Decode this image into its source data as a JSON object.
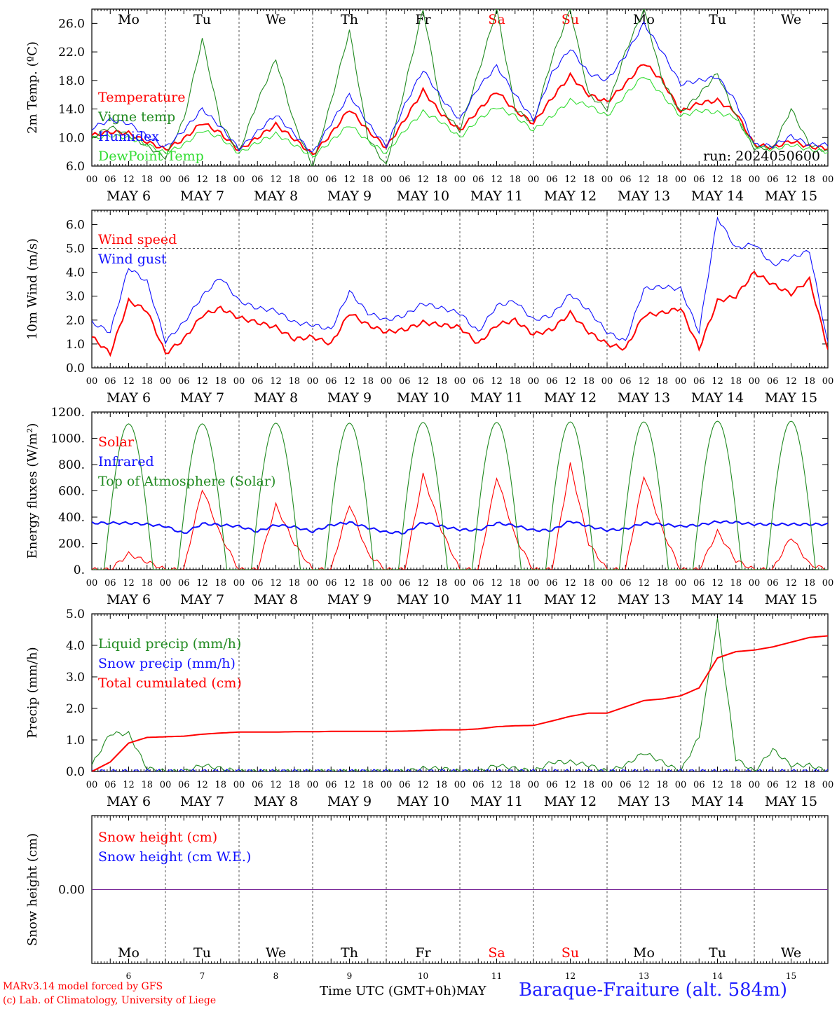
{
  "colors": {
    "red": "#ff0000",
    "green": "#228b22",
    "blue": "#1010ff",
    "lightgreen": "#33dd33",
    "purple": "#7a2a9a",
    "axis": "#000000",
    "grid": "#555555",
    "weekend": "#ff0000"
  },
  "days": [
    "Mo",
    "Tu",
    "We",
    "Th",
    "Fr",
    "Sa",
    "Su",
    "Mo",
    "Tu",
    "We"
  ],
  "weekend_days": [
    "Sa",
    "Su"
  ],
  "dates": [
    "MAY  6",
    "MAY  7",
    "MAY  8",
    "MAY  9",
    "MAY 10",
    "MAY 11",
    "MAY 12",
    "MAY 13",
    "MAY 14",
    "MAY 15"
  ],
  "day_numbers": [
    "6",
    "7",
    "8",
    "9",
    "10",
    "11",
    "12",
    "13",
    "14",
    "15"
  ],
  "hour_ticks": [
    "00",
    "06",
    "12",
    "18"
  ],
  "final_tick": "00",
  "footer": {
    "model": "MARv3.14 model forced by GFS",
    "credit": "(c) Lab. of Climatology, University of Liege",
    "time_label": "Time UTC (GMT+0h)",
    "month": "MAY",
    "station": "Baraque-Fraiture (alt. 584m)"
  },
  "chart_data": [
    {
      "type": "line",
      "ylabel": "2m Temp. (ºC)",
      "ylim": [
        6,
        28
      ],
      "yticks": [
        6,
        10,
        14,
        18,
        22,
        26
      ],
      "ytick_labels": [
        "6.0",
        "10.0",
        "14.0",
        "18.0",
        "22.0",
        "26.0"
      ],
      "x": [
        0,
        6,
        12,
        18,
        24,
        30,
        36,
        42,
        48,
        54,
        60,
        66,
        72,
        78,
        84,
        90,
        96,
        102,
        108,
        114,
        120,
        126,
        132,
        138,
        144,
        150,
        156,
        162,
        168,
        174,
        180,
        186,
        192,
        198,
        204,
        210,
        216,
        222,
        228,
        234,
        240
      ],
      "run_label": "run: 2024050600",
      "series": [
        {
          "name": "Temperature",
          "color": "red",
          "values": [
            10.3,
            10.8,
            10.6,
            9.4,
            8.3,
            9.8,
            12.1,
            10.6,
            8.2,
            10.0,
            11.8,
            9.8,
            7.6,
            10.5,
            14.0,
            11.0,
            8.6,
            12.5,
            16.6,
            13.3,
            11.0,
            13.8,
            16.5,
            13.8,
            12.0,
            15.5,
            18.7,
            16.0,
            15.0,
            17.5,
            20.5,
            18.0,
            13.6,
            14.8,
            15.2,
            13.5,
            9.0,
            8.6,
            9.5,
            8.7,
            8.5
          ]
        },
        {
          "name": "Vigne temp",
          "color": "green",
          "values": [
            10.0,
            11.5,
            10.3,
            8.8,
            7.2,
            12.5,
            23.8,
            12.0,
            8.0,
            15.0,
            21.0,
            12.0,
            6.0,
            15.0,
            25.0,
            10.0,
            6.0,
            17.0,
            28.0,
            14.0,
            11.0,
            19.0,
            28.0,
            14.0,
            12.0,
            21.0,
            28.0,
            16.0,
            14.0,
            22.0,
            28.0,
            18.0,
            13.5,
            16.0,
            19.0,
            13.0,
            8.5,
            8.5,
            14.0,
            9.0,
            8.0
          ]
        },
        {
          "name": "Humidex",
          "color": "blue",
          "values": [
            11.3,
            12.5,
            12.0,
            10.2,
            8.6,
            11.0,
            14.0,
            11.5,
            8.4,
            10.8,
            13.2,
            10.5,
            7.8,
            12.0,
            16.0,
            12.0,
            8.8,
            14.5,
            19.5,
            15.5,
            12.5,
            17.0,
            20.0,
            16.0,
            12.5,
            19.0,
            22.5,
            19.0,
            18.0,
            21.5,
            26.0,
            22.0,
            17.5,
            18.0,
            18.5,
            15.0,
            9.0,
            8.8,
            10.2,
            9.0,
            9.0
          ]
        },
        {
          "name": "DewPoint Temp",
          "color": "lightgreen",
          "values": [
            9.8,
            10.3,
            10.0,
            9.0,
            7.8,
            9.0,
            11.0,
            10.0,
            7.8,
            9.3,
            10.5,
            9.0,
            7.3,
            9.5,
            11.8,
            9.5,
            7.8,
            11.0,
            13.6,
            12.2,
            10.0,
            12.5,
            14.3,
            13.0,
            11.0,
            13.0,
            15.2,
            14.5,
            13.0,
            16.0,
            18.7,
            16.0,
            13.0,
            13.8,
            13.5,
            12.8,
            8.8,
            8.3,
            9.0,
            8.3,
            8.0
          ]
        }
      ]
    },
    {
      "type": "line",
      "ylabel": "10m Wind (m/s)",
      "ylim": [
        0,
        6.6
      ],
      "yticks": [
        0,
        1,
        2,
        3,
        4,
        5,
        6
      ],
      "ytick_labels": [
        "0.0",
        "1.0",
        "2.0",
        "3.0",
        "4.0",
        "5.0",
        "6.0"
      ],
      "hline": 5,
      "x": [
        0,
        6,
        12,
        18,
        24,
        30,
        36,
        42,
        48,
        54,
        60,
        66,
        72,
        78,
        84,
        90,
        96,
        102,
        108,
        114,
        120,
        126,
        132,
        138,
        144,
        150,
        156,
        162,
        168,
        174,
        180,
        186,
        192,
        198,
        204,
        210,
        216,
        222,
        228,
        234,
        240
      ],
      "series": [
        {
          "name": "Wind speed",
          "color": "red",
          "values": [
            1.3,
            0.6,
            2.8,
            2.4,
            0.6,
            1.2,
            2.2,
            2.5,
            2.1,
            1.9,
            1.7,
            1.2,
            1.3,
            1.0,
            2.3,
            1.8,
            1.5,
            1.6,
            1.9,
            1.8,
            1.7,
            1.0,
            1.8,
            2.0,
            1.4,
            1.6,
            2.3,
            1.5,
            1.0,
            0.8,
            2.2,
            2.3,
            2.5,
            0.8,
            2.8,
            3.0,
            4.0,
            3.5,
            3.1,
            3.7,
            0.8
          ]
        },
        {
          "name": "Wind gust",
          "color": "blue",
          "values": [
            1.9,
            1.5,
            4.2,
            3.6,
            1.1,
            1.9,
            3.0,
            3.8,
            2.8,
            2.5,
            2.4,
            1.9,
            1.8,
            1.6,
            3.2,
            2.3,
            2.0,
            2.2,
            2.7,
            2.5,
            2.3,
            1.5,
            2.6,
            2.8,
            2.0,
            2.2,
            3.1,
            2.4,
            1.5,
            1.1,
            3.3,
            3.4,
            3.3,
            1.5,
            6.3,
            5.0,
            5.2,
            4.3,
            4.6,
            4.9,
            1.0
          ]
        }
      ]
    },
    {
      "type": "line",
      "ylabel": "Energy fluxes (W/m²)",
      "ylim": [
        0,
        1200
      ],
      "yticks": [
        0,
        200,
        400,
        600,
        800,
        1000,
        1200
      ],
      "ytick_labels": [
        "0.",
        "200.",
        "400.",
        "600.",
        "800.",
        "1000.",
        "1200."
      ],
      "x": [
        0,
        6,
        12,
        18,
        24,
        30,
        36,
        42,
        48,
        54,
        60,
        66,
        72,
        78,
        84,
        90,
        96,
        102,
        108,
        114,
        120,
        126,
        132,
        138,
        144,
        150,
        156,
        162,
        168,
        174,
        180,
        186,
        192,
        198,
        204,
        210,
        216,
        222,
        228,
        234,
        240
      ],
      "series": [
        {
          "name": "Solar",
          "color": "red",
          "values": [
            0,
            0,
            120,
            60,
            0,
            0,
            620,
            260,
            0,
            0,
            490,
            200,
            0,
            0,
            500,
            120,
            0,
            0,
            720,
            300,
            0,
            0,
            710,
            250,
            0,
            0,
            800,
            200,
            0,
            0,
            720,
            300,
            0,
            0,
            290,
            70,
            0,
            0,
            250,
            40,
            0
          ]
        },
        {
          "name": "Infrared",
          "color": "blue",
          "values": [
            355,
            355,
            355,
            345,
            330,
            275,
            350,
            340,
            330,
            290,
            340,
            325,
            290,
            340,
            360,
            320,
            285,
            280,
            360,
            330,
            305,
            300,
            355,
            335,
            300,
            300,
            370,
            330,
            300,
            310,
            355,
            345,
            330,
            340,
            365,
            360,
            345,
            345,
            345,
            345,
            345
          ]
        },
        {
          "name": "Top of Atmosphere (Solar)",
          "color": "green",
          "daily_peak": [
            1110,
            1110,
            1115,
            1115,
            1120,
            1120,
            1125,
            1125,
            1130,
            1130
          ]
        }
      ]
    },
    {
      "type": "line",
      "ylabel": "Precip (mm/h)",
      "ylim": [
        0,
        5
      ],
      "yticks": [
        0,
        1,
        2,
        3,
        4,
        5
      ],
      "ytick_labels": [
        "0.0",
        "1.0",
        "2.0",
        "3.0",
        "4.0",
        "5.0"
      ],
      "x": [
        0,
        6,
        12,
        18,
        24,
        30,
        36,
        42,
        48,
        54,
        60,
        66,
        72,
        78,
        84,
        90,
        96,
        102,
        108,
        114,
        120,
        126,
        132,
        138,
        144,
        150,
        156,
        162,
        168,
        174,
        180,
        186,
        192,
        198,
        204,
        210,
        216,
        222,
        228,
        234,
        240
      ],
      "series": [
        {
          "name": "Liquid precip (mm/h)",
          "color": "green",
          "values": [
            0.2,
            1.2,
            1.2,
            0.1,
            0.0,
            0.0,
            0.2,
            0.1,
            0.0,
            0.0,
            0.0,
            0.0,
            0.0,
            0.0,
            0.0,
            0.0,
            0.0,
            0.0,
            0.1,
            0.1,
            0.0,
            0.0,
            0.2,
            0.1,
            0.0,
            0.3,
            0.3,
            0.2,
            0.0,
            0.2,
            0.6,
            0.3,
            0.0,
            1.1,
            4.8,
            0.4,
            0.0,
            0.7,
            0.2,
            0.2,
            0.0
          ]
        },
        {
          "name": "Snow precip (mm/h)",
          "color": "blue",
          "values": [
            0,
            0,
            0,
            0,
            0,
            0,
            0,
            0,
            0,
            0,
            0,
            0,
            0,
            0,
            0,
            0,
            0,
            0,
            0,
            0,
            0,
            0,
            0,
            0,
            0,
            0,
            0,
            0,
            0,
            0,
            0,
            0,
            0,
            0,
            0,
            0,
            0,
            0,
            0,
            0,
            0
          ]
        },
        {
          "name": "Total cumulated (cm)",
          "color": "red",
          "values": [
            0.0,
            0.3,
            0.9,
            1.08,
            1.1,
            1.12,
            1.18,
            1.22,
            1.25,
            1.25,
            1.25,
            1.26,
            1.26,
            1.27,
            1.27,
            1.27,
            1.27,
            1.28,
            1.3,
            1.32,
            1.32,
            1.35,
            1.42,
            1.45,
            1.46,
            1.6,
            1.75,
            1.85,
            1.85,
            2.05,
            2.25,
            2.3,
            2.4,
            2.65,
            3.6,
            3.8,
            3.85,
            3.95,
            4.1,
            4.25,
            4.3
          ]
        }
      ]
    },
    {
      "type": "line",
      "ylabel": "Snow height (cm)",
      "ylim": [
        -1,
        1
      ],
      "yticks": [
        0
      ],
      "ytick_labels": [
        "0.00"
      ],
      "x": [
        0,
        240
      ],
      "series": [
        {
          "name": "Snow height (cm)",
          "color": "red",
          "values": [
            0,
            0
          ]
        },
        {
          "name": "Snow height (cm W.E.)",
          "color": "blue",
          "values": [
            0,
            0
          ]
        }
      ]
    }
  ]
}
